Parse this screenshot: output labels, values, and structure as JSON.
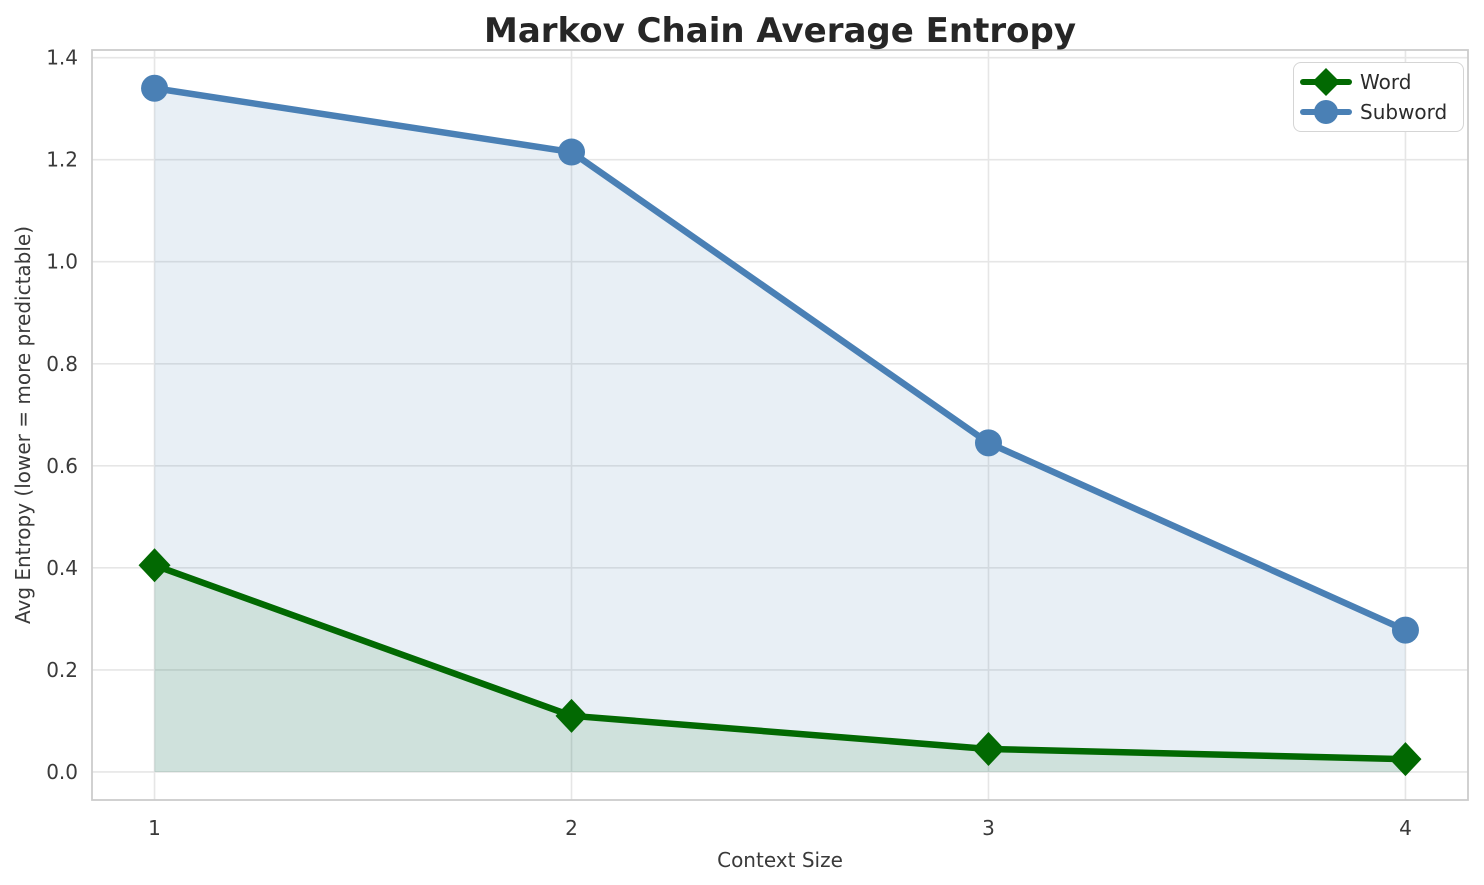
{
  "chart_data": {
    "type": "line",
    "title": "Markov Chain Average Entropy",
    "xlabel": "Context Size",
    "ylabel": "Avg Entropy (lower = more predictable)",
    "x": [
      1,
      2,
      3,
      4
    ],
    "series": [
      {
        "name": "Word",
        "marker": "diamond",
        "color": "#026902",
        "fill_opacity": 0.11,
        "values": [
          0.405,
          0.11,
          0.045,
          0.025
        ]
      },
      {
        "name": "Subword",
        "marker": "circle",
        "color": "#4a80b5",
        "fill_opacity": 0.13,
        "values": [
          1.34,
          1.215,
          0.645,
          0.278
        ]
      }
    ],
    "x_ticks": [
      {
        "value": 1,
        "label": "1"
      },
      {
        "value": 2,
        "label": "2"
      },
      {
        "value": 3,
        "label": "3"
      },
      {
        "value": 4,
        "label": "4"
      }
    ],
    "y_ticks": [
      {
        "value": 0.0,
        "label": "0.0"
      },
      {
        "value": 0.2,
        "label": "0.2"
      },
      {
        "value": 0.4,
        "label": "0.4"
      },
      {
        "value": 0.6,
        "label": "0.6"
      },
      {
        "value": 0.8,
        "label": "0.8"
      },
      {
        "value": 1.0,
        "label": "1.0"
      },
      {
        "value": 1.2,
        "label": "1.2"
      },
      {
        "value": 1.4,
        "label": "1.4"
      }
    ],
    "xlim": [
      0.85,
      4.15
    ],
    "ylim": [
      -0.055,
      1.415
    ],
    "grid": true,
    "legend_position": "upper right",
    "area_fill_to_zero": true
  },
  "style_colors": {
    "background": "#ffffff",
    "grid": "#e6e6e6",
    "spine": "#cccccc",
    "title_text": "#262626",
    "tick_text": "#3a3a3a",
    "legend_border": "#d5d5d5",
    "legend_bg": "#ffffff"
  }
}
